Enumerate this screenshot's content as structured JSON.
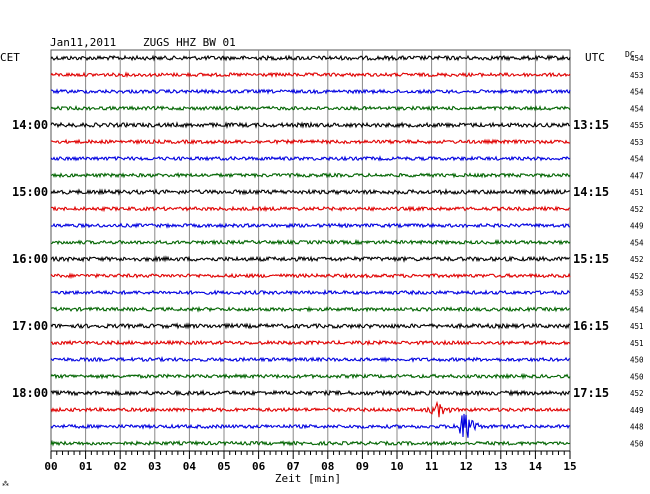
{
  "header": {
    "date": "Jan11,2011",
    "station": "ZUGS HHZ BW 01",
    "left_zone": "CET",
    "right_zone": "UTC",
    "dc_label": "DC"
  },
  "xaxis": {
    "label": "Zeit [min]"
  },
  "corner_mark": "⁂",
  "colors": {
    "black": "#000000",
    "red": "#e00000",
    "blue": "#0000e0",
    "green": "#006400",
    "grid": "#888888"
  },
  "chart_data": {
    "type": "line",
    "title": "Jan11,2011   ZUGS HHZ BW 01",
    "xlabel": "Zeit [min]",
    "xlim": [
      0,
      15
    ],
    "xticks": [
      "00",
      "01",
      "02",
      "03",
      "04",
      "05",
      "06",
      "07",
      "08",
      "09",
      "10",
      "11",
      "12",
      "13",
      "14",
      "15"
    ],
    "left_hour_labels": [
      "14:00",
      "15:00",
      "16:00",
      "17:00",
      "18:00"
    ],
    "right_hour_labels": [
      "13:15",
      "14:15",
      "15:15",
      "16:15",
      "17:15"
    ],
    "trace_colors": [
      "black",
      "red",
      "blue",
      "green"
    ],
    "dc_values": [
      454,
      453,
      454,
      454,
      455,
      453,
      454,
      447,
      451,
      452,
      449,
      454,
      452,
      452,
      453,
      454,
      451,
      451,
      450,
      450,
      452,
      449,
      448,
      450
    ],
    "events": [
      {
        "trace": 21,
        "color": "red",
        "minute_start": 10.8,
        "minute_end": 11.6,
        "amplitude": "moderate"
      },
      {
        "trace": 22,
        "color": "blue",
        "minute_start": 11.6,
        "minute_end": 12.4,
        "amplitude": "large"
      }
    ],
    "grid": true
  }
}
